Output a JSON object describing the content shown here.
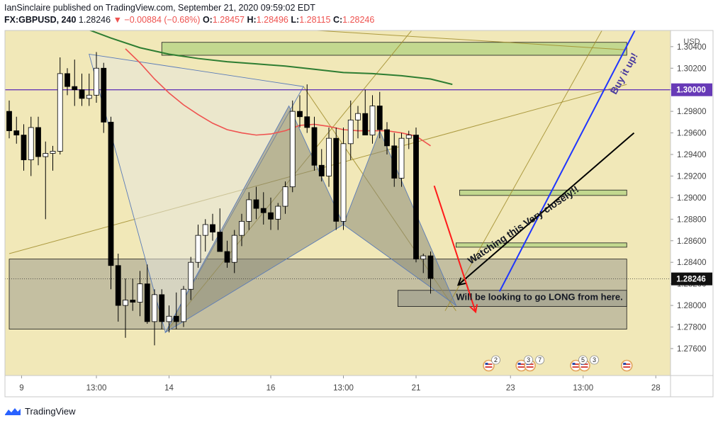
{
  "header": {
    "line1": "IanSinclaire published on TradingView.com, September 21, 2020 09:59:02 EDT",
    "symbol": "FX:GBPUSD, 240",
    "last": "1.28246",
    "change": "▼ −0.00884 (−0.68%)",
    "o_label": "O:",
    "o_value": "1.28457",
    "h_label": "H:",
    "h_value": "1.28496",
    "l_label": "L:",
    "l_value": "1.28115",
    "c_label": "C:",
    "c_value": "1.28246"
  },
  "footer": {
    "brand": "TradingView",
    "logo_icon": "tradingview-logo-icon"
  },
  "colors": {
    "up": "#ffffff",
    "down": "#000000",
    "bg": "#f1e8b8",
    "pattern_fill": "#8a8a78",
    "zone_green": "#9acb6e",
    "zone_gray": "#8e8e84",
    "sma_red": "#ef5350",
    "sma_green": "#2e7d32",
    "level": "#673ab7",
    "arrow_red": "#ff1a1a",
    "line_blue": "#1f35ff",
    "line_black": "#000000"
  },
  "chart_data": {
    "type": "candlestick",
    "currency": "USD",
    "ylim": [
      1.2735,
      1.3055
    ],
    "y_ticks": [
      "1.27600",
      "1.27800",
      "1.28000",
      "1.28200",
      "1.28400",
      "1.28600",
      "1.28800",
      "1.29000",
      "1.29200",
      "1.29400",
      "1.29600",
      "1.29800",
      "1.30000",
      "1.30200",
      "1.30400"
    ],
    "x_ticks": [
      "9",
      "13:00",
      "14",
      "16",
      "13:00",
      "21",
      "23",
      "13:00",
      "28"
    ],
    "last_price": "1.28246",
    "level_label": "1.30000",
    "level_value": 1.3,
    "candles": [
      [
        1.298,
        1.299,
        1.2955,
        1.2962
      ],
      [
        1.2962,
        1.2975,
        1.295,
        1.2958
      ],
      [
        1.2958,
        1.2968,
        1.2925,
        1.2935
      ],
      [
        1.2935,
        1.2975,
        1.292,
        1.2965
      ],
      [
        1.2965,
        1.2975,
        1.293,
        1.2938
      ],
      [
        1.2938,
        1.2952,
        1.288,
        1.2941
      ],
      [
        1.2941,
        1.2948,
        1.2925,
        1.2943
      ],
      [
        1.2943,
        1.303,
        1.294,
        1.3015
      ],
      [
        1.3015,
        1.302,
        1.2995,
        1.3003
      ],
      [
        1.3003,
        1.3028,
        1.2985,
        1.3
      ],
      [
        1.3,
        1.3015,
        1.2985,
        1.2992
      ],
      [
        1.2992,
        1.3015,
        1.2985,
        1.2995
      ],
      [
        1.2995,
        1.3035,
        1.2988,
        1.302
      ],
      [
        1.302,
        1.3025,
        1.296,
        1.297
      ],
      [
        1.297,
        1.2975,
        1.2815,
        1.2837
      ],
      [
        1.2837,
        1.2848,
        1.2785,
        1.28
      ],
      [
        1.28,
        1.2825,
        1.277,
        1.2805
      ],
      [
        1.2805,
        1.2825,
        1.2795,
        1.2803
      ],
      [
        1.2803,
        1.2832,
        1.279,
        1.282
      ],
      [
        1.282,
        1.2838,
        1.2783,
        1.2785
      ],
      [
        1.2785,
        1.2815,
        1.2763,
        1.281
      ],
      [
        1.281,
        1.2815,
        1.2778,
        1.2785
      ],
      [
        1.2785,
        1.28,
        1.2775,
        1.279
      ],
      [
        1.279,
        1.2812,
        1.2778,
        1.2785
      ],
      [
        1.2785,
        1.2818,
        1.278,
        1.2815
      ],
      [
        1.2815,
        1.2845,
        1.2805,
        1.284
      ],
      [
        1.284,
        1.2875,
        1.2835,
        1.2865
      ],
      [
        1.2865,
        1.288,
        1.285,
        1.2875
      ],
      [
        1.2875,
        1.2885,
        1.286,
        1.2868
      ],
      [
        1.2868,
        1.289,
        1.285,
        1.285
      ],
      [
        1.285,
        1.286,
        1.2835,
        1.284
      ],
      [
        1.284,
        1.287,
        1.283,
        1.2865
      ],
      [
        1.2865,
        1.2885,
        1.2855,
        1.2878
      ],
      [
        1.2878,
        1.2905,
        1.287,
        1.2898
      ],
      [
        1.2898,
        1.291,
        1.288,
        1.289
      ],
      [
        1.289,
        1.2905,
        1.2875,
        1.2886
      ],
      [
        1.2886,
        1.29,
        1.287,
        1.288
      ],
      [
        1.288,
        1.2895,
        1.287,
        1.2892
      ],
      [
        1.2892,
        1.2915,
        1.2885,
        1.291
      ],
      [
        1.291,
        1.299,
        1.2905,
        1.298
      ],
      [
        1.298,
        1.2995,
        1.2965,
        1.2975
      ],
      [
        1.2975,
        1.3005,
        1.296,
        1.2965
      ],
      [
        1.2965,
        1.2975,
        1.2925,
        1.293
      ],
      [
        1.293,
        1.2945,
        1.2915,
        1.292
      ],
      [
        1.292,
        1.2965,
        1.291,
        1.2955
      ],
      [
        1.2955,
        1.2965,
        1.287,
        1.2878
      ],
      [
        1.2878,
        1.2965,
        1.287,
        1.295
      ],
      [
        1.295,
        1.299,
        1.2935,
        1.2972
      ],
      [
        1.2972,
        1.2985,
        1.2955,
        1.2978
      ],
      [
        1.2978,
        1.3,
        1.296,
        1.2958
      ],
      [
        1.2958,
        1.2995,
        1.295,
        1.2985
      ],
      [
        1.2985,
        1.2998,
        1.2955,
        1.2963
      ],
      [
        1.2963,
        1.297,
        1.294,
        1.2948
      ],
      [
        1.2948,
        1.296,
        1.291,
        1.2918
      ],
      [
        1.2918,
        1.296,
        1.291,
        1.2955
      ],
      [
        1.2955,
        1.2962,
        1.2945,
        1.2958
      ],
      [
        1.2958,
        1.2965,
        1.284,
        1.2843
      ],
      [
        1.2843,
        1.2848,
        1.283,
        1.2846
      ],
      [
        1.2846,
        1.285,
        1.2811,
        1.2825
      ]
    ],
    "sma_red": [
      [
        16,
        1.3038
      ],
      [
        18,
        1.3025
      ],
      [
        20,
        1.301
      ],
      [
        22,
        1.2997
      ],
      [
        24,
        1.2986
      ],
      [
        26,
        1.2977
      ],
      [
        28,
        1.2969
      ],
      [
        30,
        1.2963
      ],
      [
        32,
        1.296
      ],
      [
        34,
        1.2958
      ],
      [
        36,
        1.2959
      ],
      [
        38,
        1.2962
      ],
      [
        40,
        1.2967
      ],
      [
        42,
        1.2968
      ],
      [
        44,
        1.2966
      ],
      [
        46,
        1.2963
      ],
      [
        48,
        1.2962
      ],
      [
        50,
        1.2962
      ],
      [
        52,
        1.2962
      ],
      [
        54,
        1.296
      ],
      [
        56,
        1.2957
      ],
      [
        58,
        1.2948
      ]
    ],
    "sma_green": [
      [
        10,
        1.3058
      ],
      [
        14,
        1.3048
      ],
      [
        18,
        1.3039
      ],
      [
        22,
        1.3033
      ],
      [
        26,
        1.3029
      ],
      [
        30,
        1.3026
      ],
      [
        34,
        1.3024
      ],
      [
        38,
        1.3022
      ],
      [
        42,
        1.3019
      ],
      [
        46,
        1.3016
      ],
      [
        50,
        1.3015
      ],
      [
        54,
        1.3013
      ],
      [
        58,
        1.301
      ],
      [
        61,
        1.3005
      ]
    ],
    "zones": [
      {
        "x0": 21.0,
        "x1": 85.0,
        "y0": 1.3032,
        "y1": 1.3044,
        "style": "green"
      },
      {
        "x0": 62.0,
        "x1": 85.0,
        "y0": 1.2902,
        "y1": 1.2907,
        "style": "green"
      },
      {
        "x0": 61.5,
        "x1": 85.0,
        "y0": 1.2854,
        "y1": 1.2858,
        "style": "green"
      },
      {
        "x0": 0.0,
        "x1": 85.0,
        "y0": 1.2778,
        "y1": 1.2843,
        "style": "gray"
      },
      {
        "x0": 53.5,
        "x1": 85.0,
        "y0": 1.2799,
        "y1": 1.2814,
        "style": "gray"
      }
    ],
    "triangles": [
      {
        "pts": [
          [
            11,
            1.3033
          ],
          [
            21.5,
            1.2775
          ],
          [
            40.5,
            1.3003
          ]
        ],
        "fill": "light"
      },
      {
        "pts": [
          [
            21.5,
            1.2775
          ],
          [
            38.5,
            1.2985
          ],
          [
            46,
            1.2875
          ]
        ],
        "fill": "dark"
      },
      {
        "pts": [
          [
            46,
            1.2875
          ],
          [
            51,
            1.2962
          ],
          [
            61.5,
            1.28
          ]
        ],
        "fill": "dark"
      }
    ],
    "guide_lines": [
      [
        [
          0,
          1.2848
        ],
        [
          85,
          1.3005
        ]
      ],
      [
        [
          30.5,
          1.306
        ],
        [
          85,
          1.3037
        ]
      ],
      [
        [
          21.5,
          1.2775
        ],
        [
          56,
          1.306
        ]
      ],
      [
        [
          60,
          1.2795
        ],
        [
          82,
          1.306
        ]
      ],
      [
        [
          40.5,
          1.3003
        ],
        [
          61.5,
          1.2795
        ]
      ]
    ],
    "annotations": [
      {
        "text": "Buy it up!",
        "anchor": [
          83.5,
          1.2995
        ],
        "angle": -61,
        "color": "#4a3a9e"
      },
      {
        "text": "Watching this Very closely!!",
        "anchor": [
          63.5,
          1.2838
        ],
        "angle": -34,
        "color": "#131722"
      },
      {
        "text": "Will be looking to go LONG from here.",
        "anchor": [
          61.5,
          1.2805
        ],
        "angle": 0,
        "color": "#131722"
      }
    ],
    "blue_line": [
      [
        67.5,
        1.2813
      ],
      [
        86.5,
        1.306
      ]
    ],
    "black_arrow": [
      [
        86.0,
        1.296
      ],
      [
        61.8,
        1.2819
      ]
    ],
    "red_arrow": [
      [
        58.5,
        1.2911
      ],
      [
        64.2,
        1.2794
      ]
    ],
    "events": [
      {
        "x": 66,
        "label": "2",
        "icons": 1
      },
      {
        "x": 70.5,
        "label": "3",
        "icons": 2,
        "extra": "7"
      },
      {
        "x": 78,
        "label": "5",
        "icons": 2,
        "extra": "3"
      },
      {
        "x": 85,
        "label": "",
        "icons": 1
      }
    ]
  }
}
